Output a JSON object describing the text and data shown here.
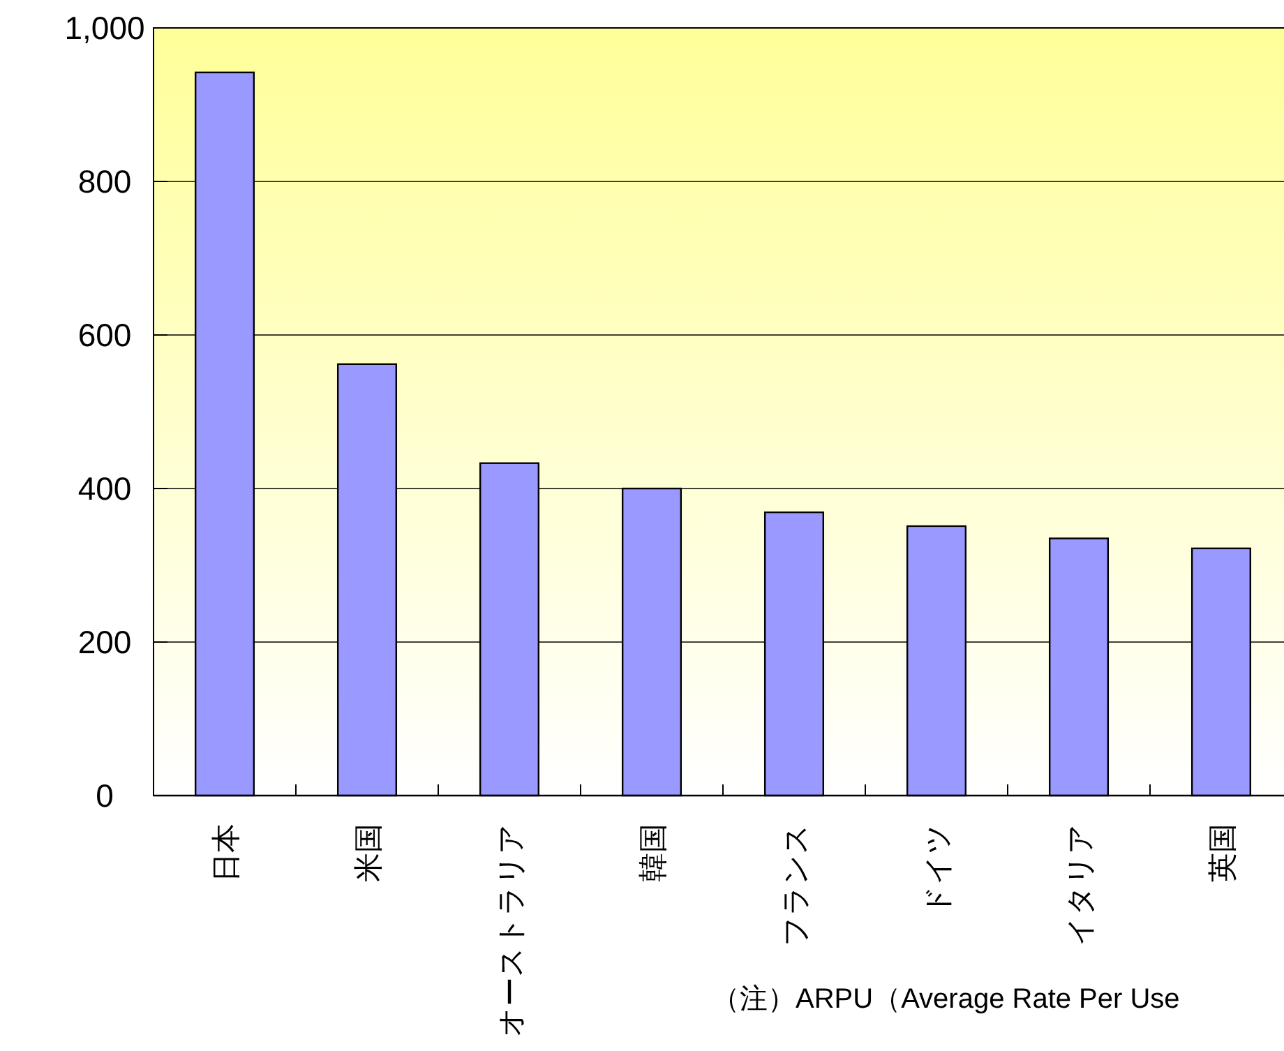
{
  "chart_data": {
    "type": "bar",
    "categories": [
      "日本",
      "米国",
      "オーストラリア",
      "韓国",
      "フランス",
      "ドイツ",
      "イタリア",
      "英国"
    ],
    "values": [
      942,
      562,
      433,
      400,
      369,
      351,
      335,
      322
    ],
    "color": "#9999ff",
    "ylim": [
      0,
      1000
    ],
    "yticks": [
      0,
      200,
      400,
      600,
      800,
      {
        "value": 1000,
        "label": "1,000"
      }
    ],
    "grid": "y",
    "annotations": [
      "（注）ARPU（Average Rate Per Use"
    ]
  }
}
